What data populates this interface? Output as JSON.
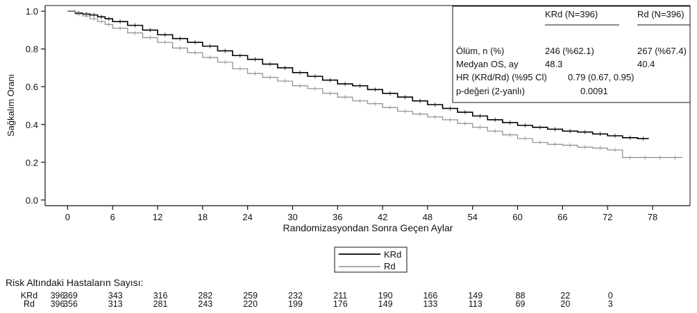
{
  "chart_data": {
    "type": "line",
    "ylabel": "Sağkalım Oranı",
    "xlabel": "Randomizasyondan Sonra Geçen Aylar",
    "xlim": [
      -3,
      83
    ],
    "ylim": [
      -0.03,
      1.03
    ],
    "xticks": [
      0,
      6,
      12,
      18,
      24,
      30,
      36,
      42,
      48,
      54,
      60,
      66,
      72,
      78
    ],
    "yticks": [
      0.0,
      0.2,
      0.4,
      0.6,
      0.8,
      1.0
    ],
    "ytick_labels": [
      "0.0",
      "0.2",
      "0.4",
      "0.6",
      "0.8",
      "1.0"
    ],
    "grid": false,
    "legend_position": "bottom-center",
    "series": [
      {
        "name": "KRd",
        "color": "#000000",
        "style": "solid",
        "x": [
          0,
          1,
          2,
          3,
          4,
          5,
          6,
          8,
          10,
          12,
          14,
          16,
          18,
          20,
          22,
          24,
          26,
          28,
          30,
          32,
          34,
          36,
          38,
          40,
          42,
          44,
          46,
          48,
          50,
          52,
          54,
          56,
          58,
          60,
          62,
          64,
          66,
          68,
          70,
          72,
          74,
          76,
          77.5
        ],
        "y": [
          1.0,
          0.99,
          0.985,
          0.98,
          0.97,
          0.96,
          0.945,
          0.925,
          0.9,
          0.875,
          0.855,
          0.835,
          0.815,
          0.79,
          0.765,
          0.745,
          0.72,
          0.7,
          0.675,
          0.655,
          0.635,
          0.615,
          0.605,
          0.585,
          0.565,
          0.545,
          0.525,
          0.505,
          0.485,
          0.465,
          0.445,
          0.425,
          0.41,
          0.395,
          0.385,
          0.375,
          0.365,
          0.36,
          0.35,
          0.34,
          0.33,
          0.325,
          0.325
        ]
      },
      {
        "name": "Rd",
        "color": "#8a8a8a",
        "style": "solid",
        "x": [
          0,
          1,
          2,
          3,
          4,
          5,
          6,
          8,
          10,
          12,
          14,
          16,
          18,
          20,
          22,
          24,
          26,
          28,
          30,
          32,
          34,
          36,
          38,
          40,
          42,
          44,
          46,
          48,
          50,
          52,
          54,
          56,
          58,
          60,
          62,
          64,
          66,
          68,
          70,
          72,
          74,
          76,
          78,
          80,
          82
        ],
        "y": [
          1.0,
          0.985,
          0.975,
          0.96,
          0.945,
          0.93,
          0.91,
          0.885,
          0.86,
          0.835,
          0.805,
          0.78,
          0.755,
          0.73,
          0.695,
          0.67,
          0.65,
          0.63,
          0.605,
          0.59,
          0.565,
          0.545,
          0.525,
          0.51,
          0.49,
          0.47,
          0.455,
          0.44,
          0.425,
          0.405,
          0.385,
          0.365,
          0.345,
          0.325,
          0.305,
          0.295,
          0.29,
          0.28,
          0.275,
          0.265,
          0.225,
          0.225,
          0.225,
          0.225,
          0.225
        ]
      }
    ],
    "stats_box": {
      "headers": [
        "KRd (N=396)",
        "Rd (N=396)"
      ],
      "rows": [
        {
          "label": "Ölüm, n (%)",
          "krd": "246 (%62.1)",
          "rd": "267 (%67.4)"
        },
        {
          "label": "Medyan OS, ay",
          "krd": "48.3",
          "rd": "40.4"
        },
        {
          "label": "HR (KRd/Rd) (%95 Cl)",
          "value": "0.79 (0.67, 0.95)"
        },
        {
          "label": "p-değeri (2-yanlı)",
          "value": "0.0091"
        }
      ]
    },
    "risk_table": {
      "title": "Risk Altındaki Hastaların Sayısı:",
      "rows": [
        {
          "name": "KRd",
          "first": "396",
          "values": [
            "369",
            "343",
            "316",
            "282",
            "259",
            "232",
            "211",
            "190",
            "166",
            "149",
            "88",
            "22",
            "0"
          ]
        },
        {
          "name": "Rd",
          "first": "396",
          "values": [
            "356",
            "313",
            "281",
            "243",
            "220",
            "199",
            "176",
            "149",
            "133",
            "113",
            "69",
            "20",
            "3"
          ]
        }
      ]
    }
  }
}
